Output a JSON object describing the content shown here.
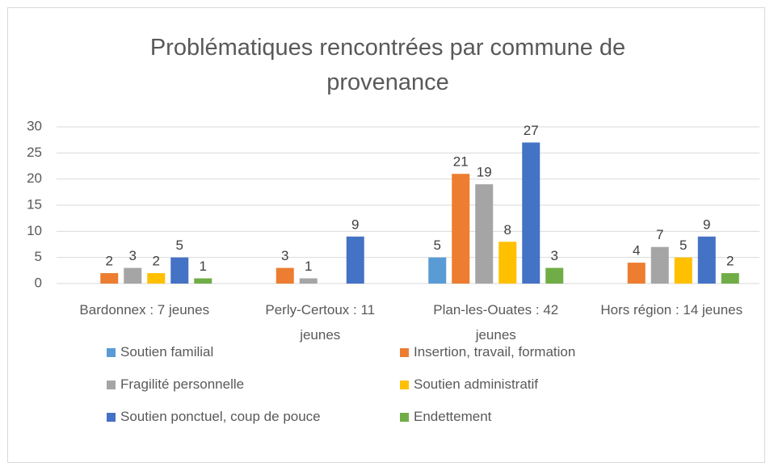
{
  "chart_data": {
    "type": "bar",
    "title": "Problématiques rencontrées par commune de provenance",
    "categories": [
      "Bardonnex : 7 jeunes",
      "Perly-Certoux : 11 jeunes",
      "Plan-les-Ouates : 42 jeunes",
      "Hors région : 14 jeunes"
    ],
    "series": [
      {
        "name": "Soutien familial",
        "color": "#5b9bd5",
        "values": [
          null,
          null,
          5,
          null
        ]
      },
      {
        "name": "Insertion, travail, formation",
        "color": "#ed7d31",
        "values": [
          2,
          3,
          21,
          4
        ]
      },
      {
        "name": "Fragilité personnelle",
        "color": "#a5a5a5",
        "values": [
          3,
          1,
          19,
          7
        ]
      },
      {
        "name": "Soutien administratif",
        "color": "#ffc000",
        "values": [
          2,
          null,
          8,
          5
        ]
      },
      {
        "name": "Soutien ponctuel, coup de pouce",
        "color": "#4472c4",
        "values": [
          5,
          9,
          27,
          9
        ]
      },
      {
        "name": "Endettement",
        "color": "#70ad47",
        "values": [
          1,
          null,
          3,
          2
        ]
      }
    ],
    "ylim": [
      0,
      30
    ],
    "yticks": [
      0,
      5,
      10,
      15,
      20,
      25,
      30
    ],
    "grid": true,
    "legend": "bottom"
  }
}
